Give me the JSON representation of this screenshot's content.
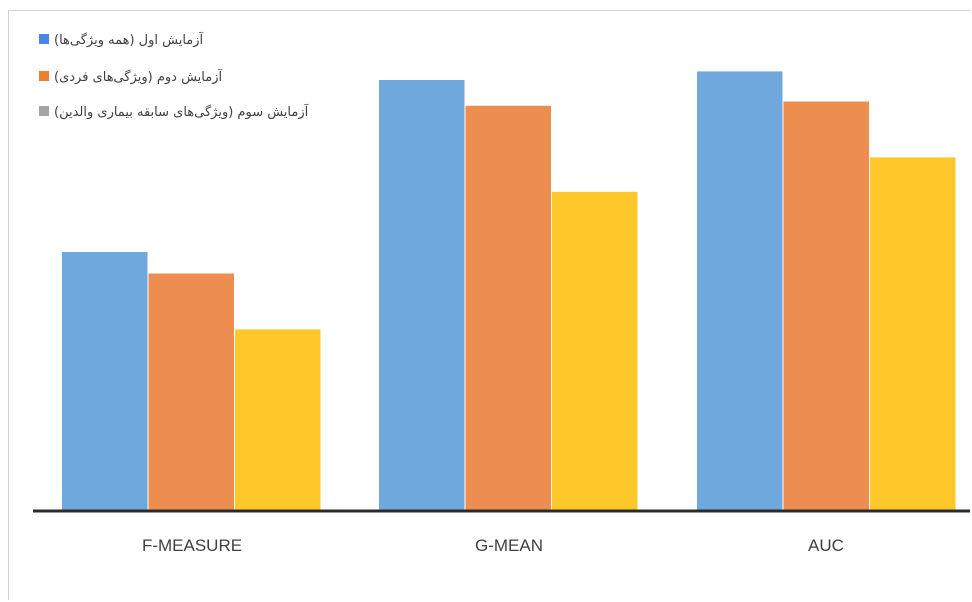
{
  "chart_data": {
    "type": "bar",
    "title": "",
    "xlabel": "",
    "ylabel": "",
    "ylim": [
      0,
      100
    ],
    "grid": false,
    "legend_position": "top-left",
    "categories": [
      "F-MEASURE",
      "G-MEAN",
      "AUC"
    ],
    "series": [
      {
        "name": "آزمایش اول (همه ویژگی‌ها)",
        "color": "#6fa8dc",
        "values": [
          60,
          100,
          102
        ]
      },
      {
        "name": "آزمایش دوم (ویژگی‌های فردی)",
        "color": "#ed8d4f",
        "values": [
          55,
          94,
          95
        ]
      },
      {
        "name": "آزمایش سوم (ویژگی‌های سابقه بیماری والدین)",
        "color": "#ffc82a",
        "values": [
          42,
          74,
          82
        ]
      }
    ],
    "legend_marker_colors": [
      "#4a86e8",
      "#ed7d31",
      "#a5a5a5"
    ]
  }
}
